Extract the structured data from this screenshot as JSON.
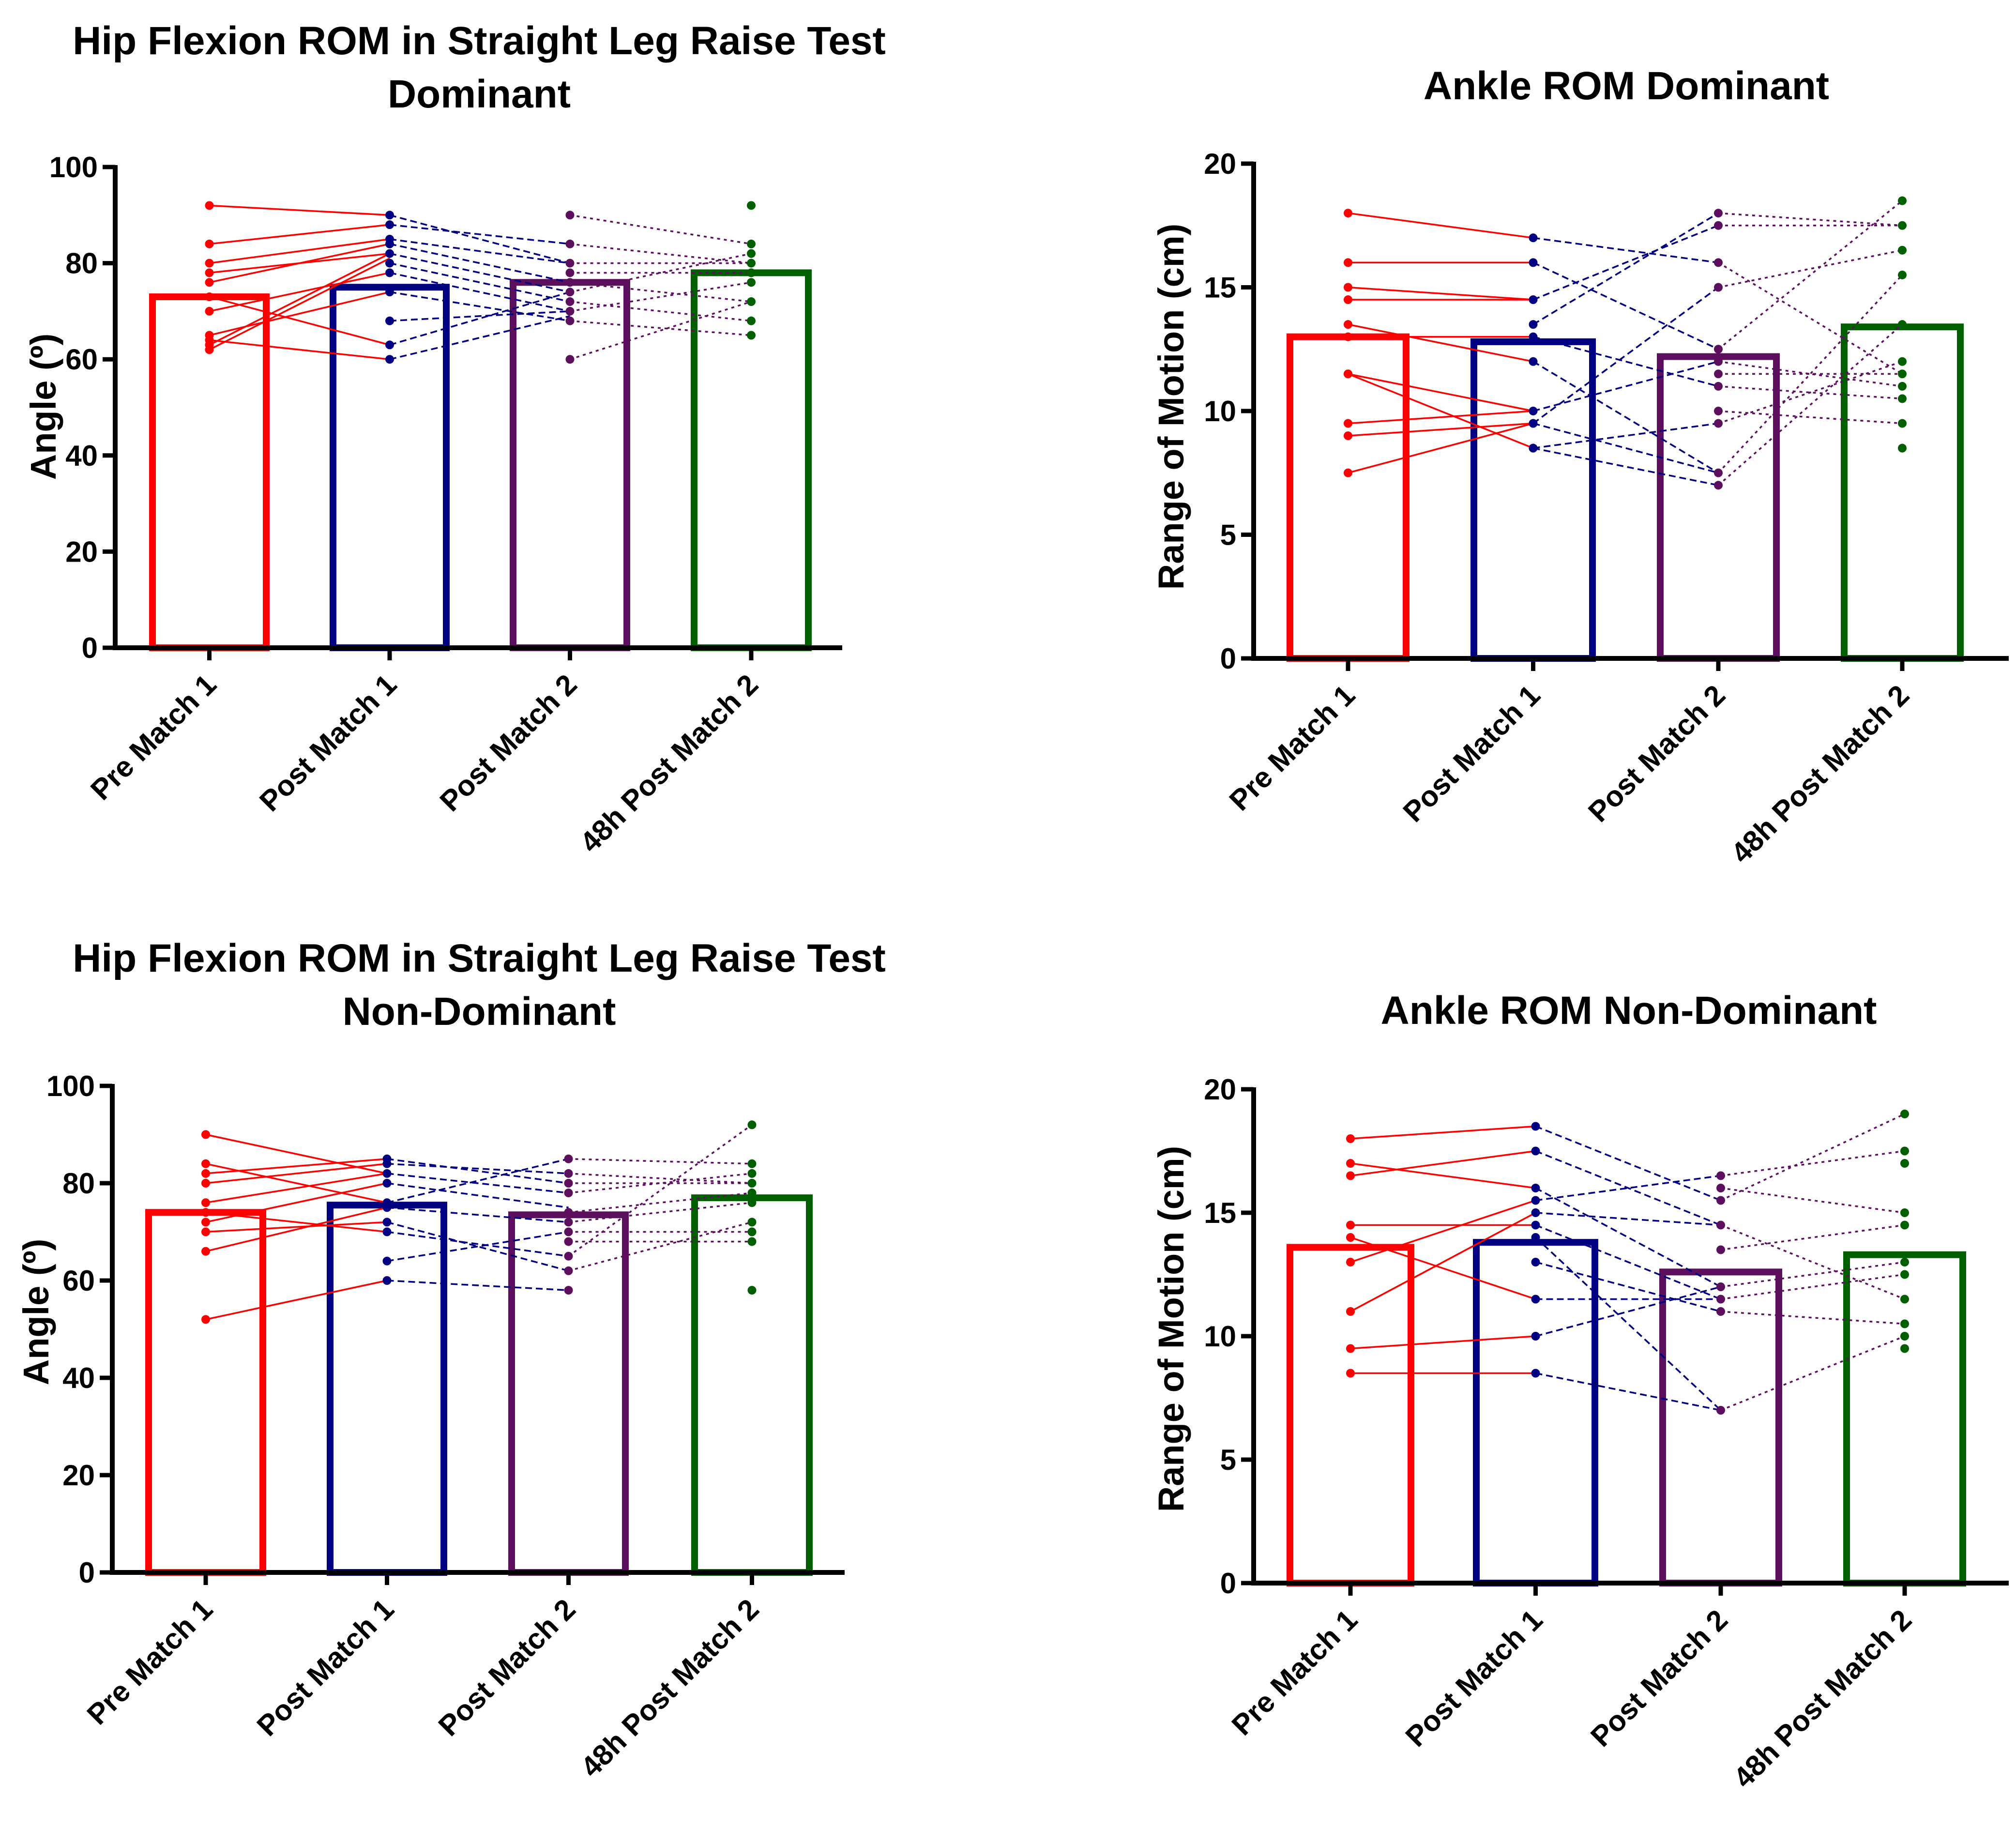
{
  "figure": {
    "panel_count": 4
  },
  "chart_data": [
    {
      "type": "bar",
      "title": "Hip Flexion ROM in Straight Leg Raise Test",
      "subtitle": "Dominant",
      "xlabel": "",
      "ylabel": "Angle (º)",
      "ylim": [
        0,
        100
      ],
      "yticks": [
        0,
        20,
        40,
        60,
        80,
        100
      ],
      "grid": false,
      "legend": "none",
      "categories": [
        "Pre Match 1",
        "Post Match 1",
        "Post Match 2",
        "48h Post Match 2"
      ],
      "colors": [
        "#ff0000",
        "#000080",
        "#5c0f5c",
        "#006000"
      ],
      "values": [
        73,
        75,
        76,
        78
      ],
      "points": [
        [
          92,
          84,
          80,
          78,
          76,
          73,
          70,
          65,
          64,
          63,
          62
        ],
        [
          90,
          88,
          85,
          84,
          82,
          80,
          78,
          74,
          68,
          63,
          60
        ],
        [
          90,
          84,
          80,
          78,
          76,
          74,
          72,
          70,
          68,
          60
        ],
        [
          92,
          84,
          82,
          80,
          78,
          76,
          72,
          68,
          65
        ]
      ],
      "paired_lines": [
        [
          [
            92,
            90
          ],
          [
            84,
            88
          ],
          [
            80,
            85
          ],
          [
            78,
            82
          ],
          [
            76,
            84
          ],
          [
            73,
            63
          ],
          [
            70,
            78
          ],
          [
            65,
            74
          ],
          [
            64,
            60
          ],
          [
            63,
            82
          ],
          [
            62,
            81
          ]
        ],
        [
          [
            90,
            80
          ],
          [
            88,
            84
          ],
          [
            85,
            80
          ],
          [
            84,
            76
          ],
          [
            82,
            74
          ],
          [
            80,
            72
          ],
          [
            78,
            70
          ],
          [
            74,
            68
          ],
          [
            68,
            70
          ],
          [
            63,
            74
          ],
          [
            60,
            69
          ]
        ],
        [
          [
            90,
            84
          ],
          [
            84,
            80
          ],
          [
            80,
            80
          ],
          [
            78,
            78
          ],
          [
            76,
            72
          ],
          [
            74,
            82
          ],
          [
            72,
            68
          ],
          [
            70,
            76
          ],
          [
            68,
            65
          ],
          [
            60,
            72
          ]
        ]
      ]
    },
    {
      "type": "bar",
      "title": "Ankle ROM Dominant",
      "xlabel": "",
      "ylabel": "Range of Motion (cm)",
      "ylim": [
        0,
        20
      ],
      "yticks": [
        0,
        5,
        10,
        15,
        20
      ],
      "grid": false,
      "legend": "none",
      "categories": [
        "Pre Match 1",
        "Post Match 1",
        "Post Match 2",
        "48h Post Match 2"
      ],
      "colors": [
        "#ff0000",
        "#000080",
        "#5c0f5c",
        "#006000"
      ],
      "values": [
        13,
        12.8,
        12.2,
        13.4
      ],
      "points": [
        [
          18,
          16,
          15,
          14.5,
          13.5,
          13,
          11.5,
          11.5,
          9.5,
          9,
          7.5
        ],
        [
          17,
          16,
          14.5,
          13.5,
          13,
          12,
          10,
          9.5,
          9.5,
          8.5,
          8.5
        ],
        [
          18,
          17.5,
          16,
          15,
          12.5,
          12,
          11.5,
          11,
          10,
          9.5,
          7.5,
          7
        ],
        [
          18.5,
          17.5,
          16.5,
          15.5,
          13.5,
          12,
          11.5,
          11,
          10.5,
          9.5,
          8.5
        ]
      ],
      "paired_lines": [
        [
          [
            18,
            17
          ],
          [
            16,
            16
          ],
          [
            15,
            14.5
          ],
          [
            14.5,
            14.5
          ],
          [
            13.5,
            12
          ],
          [
            13,
            13
          ],
          [
            11.5,
            8.5
          ],
          [
            11.5,
            10
          ],
          [
            9.5,
            10
          ],
          [
            9,
            9.5
          ],
          [
            7.5,
            9.5
          ]
        ],
        [
          [
            17,
            16
          ],
          [
            16,
            12.5
          ],
          [
            14.5,
            17.5
          ],
          [
            13.5,
            18
          ],
          [
            13,
            11
          ],
          [
            12,
            7.5
          ],
          [
            10,
            12
          ],
          [
            9.5,
            7.5
          ],
          [
            9.5,
            15
          ],
          [
            8.5,
            9.5
          ],
          [
            8.5,
            7
          ]
        ],
        [
          [
            18,
            17.5
          ],
          [
            17.5,
            17.5
          ],
          [
            16,
            11.5
          ],
          [
            15,
            16.5
          ],
          [
            12.5,
            18.5
          ],
          [
            12,
            11
          ],
          [
            11.5,
            11.5
          ],
          [
            11,
            10.5
          ],
          [
            10,
            9.5
          ],
          [
            9.5,
            12
          ],
          [
            7.5,
            15.5
          ],
          [
            7,
            13.5
          ]
        ]
      ]
    },
    {
      "type": "bar",
      "title": "Hip Flexion ROM in Straight Leg Raise Test",
      "subtitle": "Non-Dominant",
      "xlabel": "",
      "ylabel": "Angle (º)",
      "ylim": [
        0,
        100
      ],
      "yticks": [
        0,
        20,
        40,
        60,
        80,
        100
      ],
      "grid": false,
      "legend": "none",
      "categories": [
        "Pre Match 1",
        "Post Match 1",
        "Post Match 2",
        "48h Post Match 2"
      ],
      "colors": [
        "#ff0000",
        "#000080",
        "#5c0f5c",
        "#006000"
      ],
      "values": [
        74,
        75.5,
        73.5,
        77
      ],
      "points": [
        [
          90,
          84,
          82,
          80,
          76,
          74,
          72,
          70,
          66,
          52
        ],
        [
          85,
          84,
          82,
          80,
          76,
          75,
          72,
          70,
          64,
          60
        ],
        [
          85,
          82,
          80,
          78,
          74,
          72,
          70,
          68,
          65,
          62,
          58
        ],
        [
          92,
          84,
          82,
          80,
          78,
          76,
          72,
          70,
          68,
          58
        ]
      ],
      "paired_lines": [
        [
          [
            90,
            82
          ],
          [
            84,
            76
          ],
          [
            82,
            85
          ],
          [
            80,
            84
          ],
          [
            76,
            82
          ],
          [
            74,
            70
          ],
          [
            72,
            80
          ],
          [
            70,
            72
          ],
          [
            66,
            75
          ],
          [
            52,
            60
          ]
        ],
        [
          [
            85,
            80
          ],
          [
            84,
            82
          ],
          [
            82,
            78
          ],
          [
            80,
            75
          ],
          [
            76,
            85
          ],
          [
            75,
            72
          ],
          [
            72,
            62
          ],
          [
            70,
            65
          ],
          [
            64,
            70
          ],
          [
            60,
            58
          ]
        ],
        [
          [
            85,
            84
          ],
          [
            82,
            80
          ],
          [
            80,
            80
          ],
          [
            78,
            82
          ],
          [
            74,
            78
          ],
          [
            72,
            76
          ],
          [
            70,
            70
          ],
          [
            68,
            68
          ],
          [
            65,
            92
          ],
          [
            62,
            72
          ]
        ]
      ]
    },
    {
      "type": "bar",
      "title": "Ankle ROM Non-Dominant",
      "xlabel": "",
      "ylabel": "Range of Motion (cm)",
      "ylim": [
        0,
        20
      ],
      "yticks": [
        0,
        5,
        10,
        15,
        20
      ],
      "grid": false,
      "legend": "none",
      "categories": [
        "Pre Match 1",
        "Post Match 1",
        "Post Match 2",
        "48h Post Match 2"
      ],
      "colors": [
        "#ff0000",
        "#000080",
        "#5c0f5c",
        "#006000"
      ],
      "values": [
        13.6,
        13.8,
        12.6,
        13.3
      ],
      "points": [
        [
          18,
          17,
          16.5,
          14.5,
          14,
          13,
          11,
          9.5,
          8.5
        ],
        [
          18.5,
          17.5,
          16,
          15.5,
          15,
          14.5,
          14,
          13,
          11.5,
          10,
          8.5
        ],
        [
          16.5,
          16,
          15.5,
          14.5,
          13.5,
          12,
          11.5,
          11,
          7
        ],
        [
          19,
          17.5,
          17,
          15,
          14.5,
          13,
          12.5,
          11.5,
          10.5,
          10,
          9.5
        ]
      ],
      "paired_lines": [
        [
          [
            18,
            18.5
          ],
          [
            17,
            16
          ],
          [
            16.5,
            17.5
          ],
          [
            14.5,
            14.5
          ],
          [
            14,
            11.5
          ],
          [
            13,
            15.5
          ],
          [
            11,
            15
          ],
          [
            9.5,
            10
          ],
          [
            8.5,
            8.5
          ]
        ],
        [
          [
            18.5,
            15.5
          ],
          [
            17.5,
            14.5
          ],
          [
            16,
            12
          ],
          [
            15.5,
            16.5
          ],
          [
            15,
            14.5
          ],
          [
            14.5,
            11.5
          ],
          [
            14,
            7
          ],
          [
            13,
            11
          ],
          [
            11.5,
            11.5
          ],
          [
            10,
            12
          ],
          [
            8.5,
            7
          ]
        ],
        [
          [
            16.5,
            17.5
          ],
          [
            16,
            15
          ],
          [
            15.5,
            19
          ],
          [
            14.5,
            11.5
          ],
          [
            13.5,
            14.5
          ],
          [
            12,
            13
          ],
          [
            11.5,
            12.5
          ],
          [
            11,
            10.5
          ],
          [
            7,
            10
          ]
        ]
      ]
    }
  ]
}
